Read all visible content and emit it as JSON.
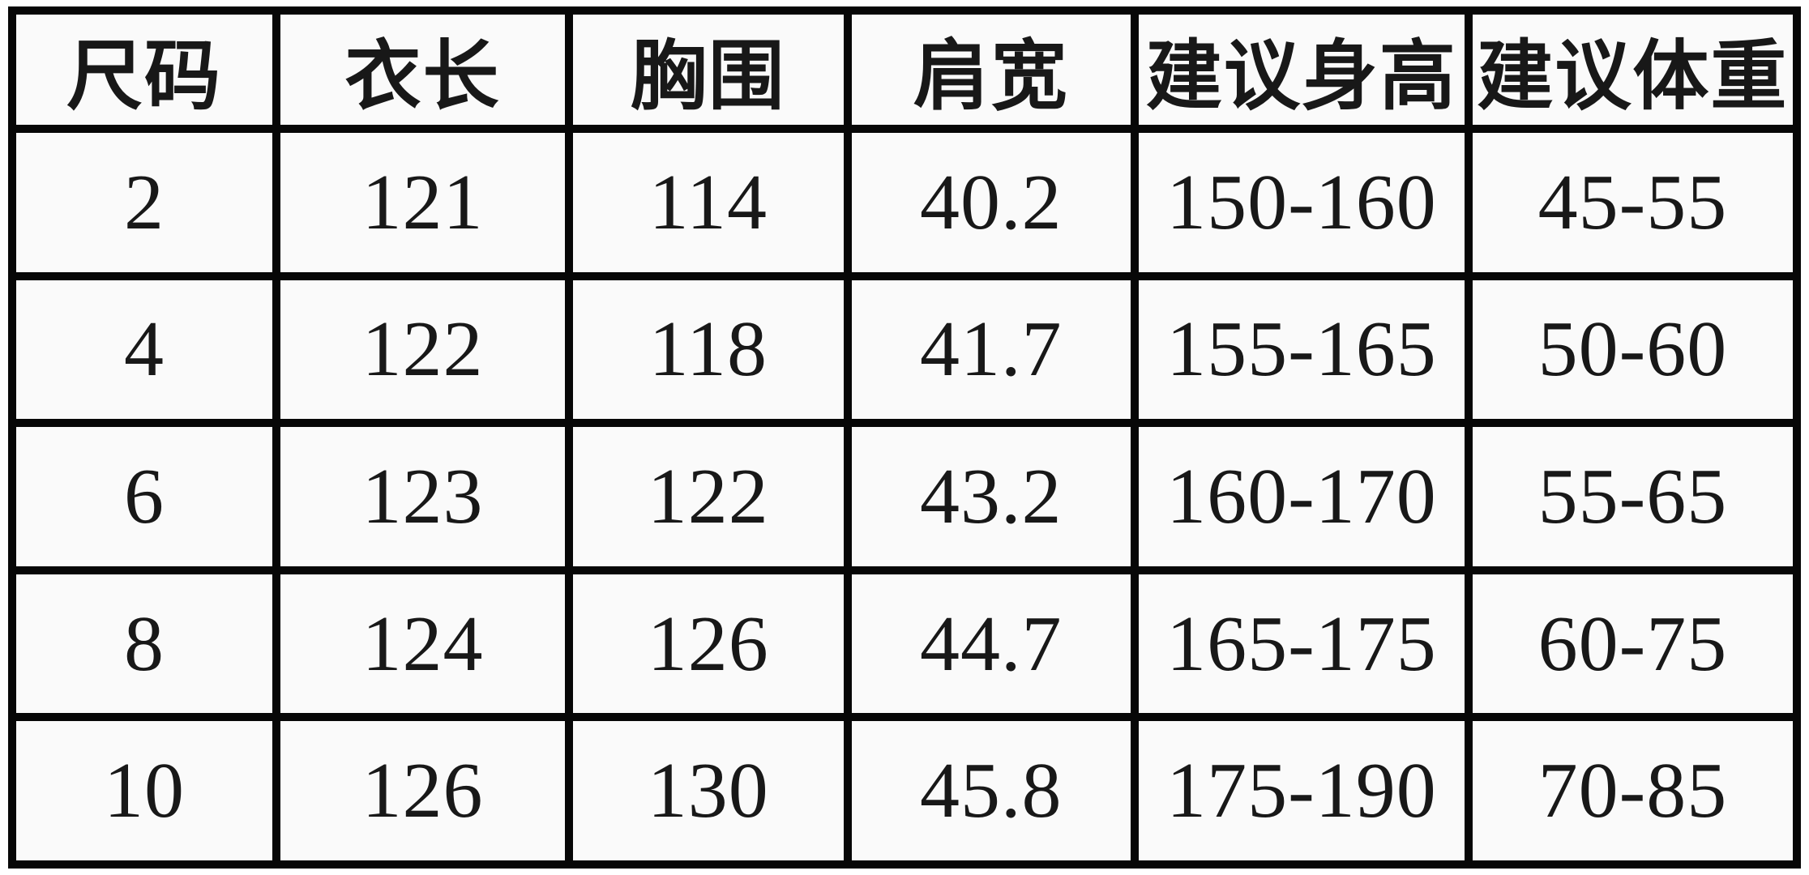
{
  "table": {
    "title": "size-chart",
    "headers": [
      "尺码",
      "衣长",
      "胸围",
      "肩宽",
      "建议身高",
      "建议体重"
    ],
    "rows": [
      [
        "2",
        "121",
        "114",
        "40.2",
        "150-160",
        "45-55"
      ],
      [
        "4",
        "122",
        "118",
        "41.7",
        "155-165",
        "50-60"
      ],
      [
        "6",
        "123",
        "122",
        "43.2",
        "160-170",
        "55-65"
      ],
      [
        "8",
        "124",
        "126",
        "44.7",
        "165-175",
        "60-75"
      ],
      [
        "10",
        "126",
        "130",
        "45.8",
        "175-190",
        "70-85"
      ]
    ]
  },
  "colors": {
    "border": "#070707",
    "cell_background": "#fafafa",
    "text": "#181818"
  }
}
